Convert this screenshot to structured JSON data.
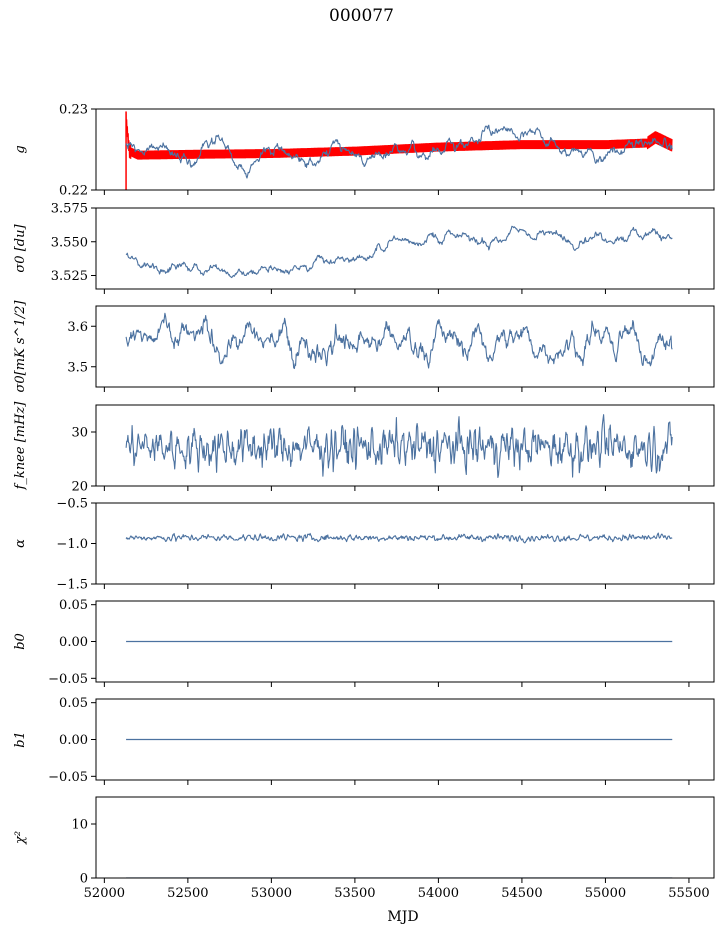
{
  "chart_data": {
    "type": "line",
    "title": "000077",
    "xlabel": "MJD",
    "xlim": [
      51950,
      55650
    ],
    "xticks": [
      52000,
      52500,
      53000,
      53500,
      54000,
      54500,
      55000,
      55500
    ],
    "data_range": [
      52130,
      55400
    ],
    "colors": {
      "series": "#4c72a0",
      "model": "#ff0000"
    },
    "panels": [
      {
        "id": "g",
        "ylabel": "g",
        "ylim": [
          0.22,
          0.23
        ],
        "yticks": [
          "0.22",
          "0.23"
        ],
        "series": [
          {
            "style": "red-band",
            "x": [
              52130,
              52150,
              52200,
              52500,
              53000,
              53500,
              54000,
              54500,
              55000,
              55250,
              55300,
              55400
            ],
            "y": [
              0.2287,
              0.2248,
              0.2243,
              0.2244,
              0.2245,
              0.2248,
              0.2253,
              0.2256,
              0.2256,
              0.2258,
              0.2265,
              0.2255
            ]
          },
          {
            "style": "blue-noise",
            "x": [
              52130,
              55400
            ],
            "y": [
              0.2246,
              0.2255
            ],
            "noise": 0.0011,
            "smooth": 25
          }
        ]
      },
      {
        "id": "sigma0",
        "ylabel": "σ0 [du]",
        "ylim": [
          3.515,
          3.575
        ],
        "yticks": [
          "3.525",
          "3.550",
          "3.575"
        ],
        "series": [
          {
            "style": "blue-noise",
            "x": [
              52130,
              52300,
              52800,
              53100,
              53400,
              53600,
              53700,
              54000,
              54300,
              54500,
              54800,
              55200,
              55400
            ],
            "y": [
              3.536,
              3.532,
              3.528,
              3.528,
              3.537,
              3.538,
              3.55,
              3.553,
              3.55,
              3.557,
              3.552,
              3.555,
              3.556
            ],
            "noise": 0.0026,
            "smooth": 5
          }
        ]
      },
      {
        "id": "sigma0mk",
        "ylabel": "σ0[mK s^1/2]",
        "ylim": [
          3.45,
          3.65
        ],
        "yticks": [
          "3.5",
          "3.6"
        ],
        "series": [
          {
            "style": "blue-noise",
            "x": [
              52130,
              55400
            ],
            "y": [
              3.562,
              3.562
            ],
            "noise": 0.026,
            "smooth": 7
          }
        ]
      },
      {
        "id": "fknee",
        "ylabel": "f_knee [mHz]",
        "ylim": [
          20,
          35
        ],
        "yticks": [
          "20",
          "30"
        ],
        "series": [
          {
            "style": "blue-noise",
            "x": [
              52130,
              55400
            ],
            "y": [
              27.2,
              27.2
            ],
            "noise": 1.9,
            "smooth": 1
          }
        ]
      },
      {
        "id": "alpha",
        "ylabel": "α",
        "ylim": [
          -1.5,
          -0.5
        ],
        "yticks": [
          "−1.5",
          "−1.0",
          "−0.5"
        ],
        "series": [
          {
            "style": "blue-noise",
            "x": [
              52130,
              55400
            ],
            "y": [
              -0.93,
              -0.93
            ],
            "noise": 0.02,
            "smooth": 1
          }
        ]
      },
      {
        "id": "b0",
        "ylabel": "b0",
        "ylim": [
          -0.055,
          0.055
        ],
        "yticks": [
          "−0.05",
          "0.00",
          "0.05"
        ],
        "series": [
          {
            "style": "flat",
            "x": [
              52130,
              55400
            ],
            "y": [
              0,
              0
            ]
          }
        ]
      },
      {
        "id": "b1",
        "ylabel": "b1",
        "ylim": [
          -0.055,
          0.055
        ],
        "yticks": [
          "−0.05",
          "0.00",
          "0.05"
        ],
        "series": [
          {
            "style": "flat",
            "x": [
              52130,
              55400
            ],
            "y": [
              0,
              0
            ]
          }
        ]
      },
      {
        "id": "chi2",
        "ylabel": "χ²",
        "ylim": [
          0,
          15
        ],
        "yticks": [
          "0",
          "10"
        ],
        "series": [
          {
            "style": "flat",
            "x": [
              52130,
              55400
            ],
            "y": [
              0,
              0
            ]
          }
        ]
      }
    ]
  }
}
